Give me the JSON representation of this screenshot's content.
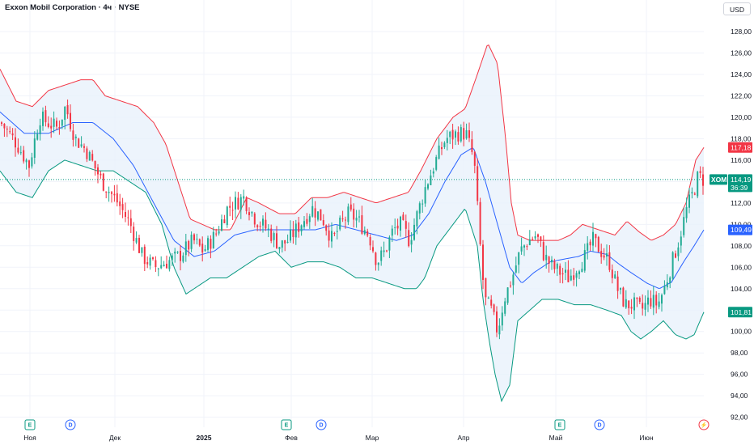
{
  "header": {
    "title": "Exxon Mobil Corporation · 4ч · NYSE",
    "currency": "USD"
  },
  "colors": {
    "up": "#22ab94",
    "down": "#f23645",
    "upper_band": "#f23645",
    "lower_band": "#089981",
    "basis": "#2962ff",
    "band_fill": "#e8f1fb",
    "grid": "#f0f3fa"
  },
  "price_tags": {
    "upper": {
      "value": "117,18",
      "color": "#f23645"
    },
    "symbol": {
      "label": "XOM",
      "value": "114,19",
      "countdown": "36:39",
      "color": "#089981"
    },
    "basis": {
      "value": "109,49",
      "color": "#2962ff"
    },
    "lower": {
      "value": "101,81",
      "color": "#089981"
    }
  },
  "events": [
    {
      "type": "earnings",
      "glyph": "E",
      "icon": "earnings-icon",
      "month": "Ноя"
    },
    {
      "type": "dividend",
      "glyph": "D",
      "icon": "dividend-icon",
      "month": "Ноя"
    },
    {
      "type": "earnings",
      "glyph": "E",
      "icon": "earnings-icon",
      "month": "Фев"
    },
    {
      "type": "dividend",
      "glyph": "D",
      "icon": "dividend-icon",
      "month": "Фев"
    },
    {
      "type": "earnings",
      "glyph": "E",
      "icon": "earnings-icon",
      "month": "Май"
    },
    {
      "type": "dividend",
      "glyph": "D",
      "icon": "dividend-icon",
      "month": "Май"
    },
    {
      "type": "split",
      "glyph": "⚡",
      "icon": "lightning-icon",
      "month": "Июн"
    }
  ],
  "chart_data": {
    "type": "candlestick",
    "indicator": "bollinger-bands",
    "ylim": [
      92,
      129
    ],
    "y_ticks": [
      "128,00",
      "126,00",
      "124,00",
      "122,00",
      "120,00",
      "118,00",
      "116,00",
      "114,00",
      "112,00",
      "110,00",
      "108,00",
      "106,00",
      "104,00",
      "102,00",
      "100,00",
      "98,00",
      "96,00",
      "94,00",
      "92,00"
    ],
    "y_tick_values": [
      128,
      126,
      124,
      122,
      120,
      118,
      116,
      114,
      112,
      110,
      108,
      106,
      104,
      102,
      100,
      98,
      96,
      94,
      92
    ],
    "x_labels": [
      {
        "text": "Ноя",
        "bold": false
      },
      {
        "text": "Дек",
        "bold": false
      },
      {
        "text": "2025",
        "bold": true
      },
      {
        "text": "Фев",
        "bold": false
      },
      {
        "text": "Мар",
        "bold": false
      },
      {
        "text": "Апр",
        "bold": false
      },
      {
        "text": "Май",
        "bold": false
      },
      {
        "text": "Июн",
        "bold": false
      }
    ],
    "last_price": 114.19,
    "anchors": {
      "close": [
        [
          0,
          119.5
        ],
        [
          20,
          117.5
        ],
        [
          35,
          115.5
        ],
        [
          48,
          120
        ],
        [
          58,
          119.5
        ],
        [
          70,
          119
        ],
        [
          80,
          121
        ],
        [
          92,
          118
        ],
        [
          105,
          117
        ],
        [
          125,
          114
        ],
        [
          145,
          112
        ],
        [
          160,
          110
        ],
        [
          175,
          107
        ],
        [
          190,
          106
        ],
        [
          205,
          106.5
        ],
        [
          220,
          107
        ],
        [
          238,
          108.5
        ],
        [
          250,
          107.5
        ],
        [
          265,
          109
        ],
        [
          280,
          111.5
        ],
        [
          300,
          112.5
        ],
        [
          315,
          110.5
        ],
        [
          330,
          109.5
        ],
        [
          345,
          108
        ],
        [
          355,
          108.5
        ],
        [
          370,
          110
        ],
        [
          385,
          111.5
        ],
        [
          398,
          110.5
        ],
        [
          410,
          108.5
        ],
        [
          420,
          110
        ],
        [
          430,
          111
        ],
        [
          440,
          110.5
        ],
        [
          455,
          109
        ],
        [
          465,
          106.5
        ],
        [
          475,
          107.5
        ],
        [
          485,
          109.5
        ],
        [
          495,
          110
        ],
        [
          505,
          108.5
        ],
        [
          515,
          111
        ],
        [
          525,
          113.5
        ],
        [
          538,
          116
        ],
        [
          550,
          118
        ],
        [
          565,
          118.5
        ],
        [
          575,
          118.5
        ],
        [
          585,
          116
        ],
        [
          592,
          108.5
        ],
        [
          598,
          103
        ],
        [
          606,
          102
        ],
        [
          614,
          100
        ],
        [
          622,
          103
        ],
        [
          632,
          105
        ],
        [
          642,
          107.5
        ],
        [
          652,
          108.5
        ],
        [
          662,
          109
        ],
        [
          672,
          107
        ],
        [
          682,
          106
        ],
        [
          692,
          105.5
        ],
        [
          702,
          105
        ],
        [
          712,
          106
        ],
        [
          722,
          107
        ],
        [
          732,
          108.5
        ],
        [
          742,
          107.5
        ],
        [
          752,
          106.5
        ],
        [
          762,
          104
        ],
        [
          772,
          102.5
        ],
        [
          782,
          102.5
        ],
        [
          792,
          102
        ],
        [
          802,
          103
        ],
        [
          812,
          102.5
        ],
        [
          820,
          104
        ],
        [
          828,
          106
        ],
        [
          838,
          108.5
        ],
        [
          848,
          111.5
        ],
        [
          856,
          113
        ],
        [
          862,
          114.5
        ],
        [
          868,
          114.19
        ]
      ],
      "basis": [
        [
          0,
          120.5
        ],
        [
          30,
          118.5
        ],
        [
          60,
          118.5
        ],
        [
          90,
          119.5
        ],
        [
          115,
          119.5
        ],
        [
          140,
          118
        ],
        [
          165,
          115.5
        ],
        [
          190,
          112
        ],
        [
          215,
          108.5
        ],
        [
          240,
          107
        ],
        [
          265,
          107.5
        ],
        [
          290,
          109
        ],
        [
          315,
          109.5
        ],
        [
          340,
          109.5
        ],
        [
          365,
          109.5
        ],
        [
          390,
          109.5
        ],
        [
          415,
          110
        ],
        [
          440,
          109.5
        ],
        [
          465,
          109
        ],
        [
          490,
          108.5
        ],
        [
          510,
          109
        ],
        [
          530,
          111
        ],
        [
          550,
          114
        ],
        [
          570,
          116.5
        ],
        [
          585,
          117.2
        ],
        [
          600,
          114
        ],
        [
          615,
          110
        ],
        [
          630,
          106
        ],
        [
          645,
          104.5
        ],
        [
          660,
          105.5
        ],
        [
          680,
          106.5
        ],
        [
          700,
          106.8
        ],
        [
          715,
          107
        ],
        [
          730,
          107.5
        ],
        [
          750,
          107.2
        ],
        [
          765,
          106.3
        ],
        [
          780,
          105.5
        ],
        [
          800,
          104.5
        ],
        [
          815,
          104
        ],
        [
          830,
          104.6
        ],
        [
          845,
          106.5
        ],
        [
          858,
          108
        ],
        [
          870,
          109.49
        ]
      ],
      "upper": [
        [
          0,
          124.5
        ],
        [
          20,
          121.5
        ],
        [
          40,
          121
        ],
        [
          60,
          122.5
        ],
        [
          80,
          123
        ],
        [
          100,
          123.5
        ],
        [
          115,
          123.5
        ],
        [
          130,
          122
        ],
        [
          150,
          121.5
        ],
        [
          170,
          121
        ],
        [
          190,
          119.5
        ],
        [
          205,
          117.5
        ],
        [
          220,
          114
        ],
        [
          235,
          110.5
        ],
        [
          250,
          110
        ],
        [
          265,
          109.5
        ],
        [
          285,
          109.5
        ],
        [
          305,
          112.5
        ],
        [
          320,
          112
        ],
        [
          345,
          111
        ],
        [
          365,
          111
        ],
        [
          385,
          112.5
        ],
        [
          405,
          112.5
        ],
        [
          425,
          113
        ],
        [
          445,
          112.5
        ],
        [
          465,
          112
        ],
        [
          485,
          112.5
        ],
        [
          505,
          113
        ],
        [
          520,
          115
        ],
        [
          540,
          118
        ],
        [
          560,
          120
        ],
        [
          575,
          120.8
        ],
        [
          590,
          124
        ],
        [
          603,
          126.9
        ],
        [
          615,
          125
        ],
        [
          625,
          118
        ],
        [
          632,
          112
        ],
        [
          640,
          109
        ],
        [
          655,
          108.5
        ],
        [
          670,
          108.5
        ],
        [
          690,
          108.5
        ],
        [
          705,
          109
        ],
        [
          720,
          110
        ],
        [
          740,
          109.5
        ],
        [
          760,
          109
        ],
        [
          775,
          110.3
        ],
        [
          790,
          109.3
        ],
        [
          805,
          108.5
        ],
        [
          820,
          109
        ],
        [
          835,
          110
        ],
        [
          848,
          112
        ],
        [
          860,
          116
        ],
        [
          870,
          117.18
        ]
      ],
      "lower": [
        [
          0,
          115
        ],
        [
          20,
          113
        ],
        [
          40,
          112.5
        ],
        [
          60,
          115
        ],
        [
          80,
          116
        ],
        [
          100,
          115.5
        ],
        [
          120,
          115
        ],
        [
          140,
          115
        ],
        [
          160,
          114
        ],
        [
          180,
          113
        ],
        [
          200,
          110
        ],
        [
          215,
          106
        ],
        [
          230,
          103.5
        ],
        [
          240,
          104
        ],
        [
          260,
          105
        ],
        [
          280,
          105
        ],
        [
          300,
          106
        ],
        [
          320,
          107
        ],
        [
          340,
          107.5
        ],
        [
          360,
          106
        ],
        [
          380,
          106.5
        ],
        [
          400,
          106.5
        ],
        [
          420,
          106
        ],
        [
          440,
          105
        ],
        [
          460,
          105
        ],
        [
          480,
          104.5
        ],
        [
          500,
          104
        ],
        [
          515,
          104
        ],
        [
          525,
          105
        ],
        [
          540,
          108
        ],
        [
          560,
          110
        ],
        [
          575,
          111.5
        ],
        [
          590,
          108
        ],
        [
          597,
          103
        ],
        [
          605,
          99
        ],
        [
          612,
          96
        ],
        [
          620,
          93.5
        ],
        [
          630,
          95
        ],
        [
          640,
          101
        ],
        [
          655,
          102
        ],
        [
          670,
          103
        ],
        [
          690,
          103
        ],
        [
          710,
          102.5
        ],
        [
          730,
          102.5
        ],
        [
          750,
          102
        ],
        [
          768,
          101.5
        ],
        [
          780,
          100
        ],
        [
          792,
          99.3
        ],
        [
          805,
          100
        ],
        [
          820,
          101
        ],
        [
          835,
          99.7
        ],
        [
          848,
          99.3
        ],
        [
          858,
          99.7
        ],
        [
          870,
          101.81
        ]
      ]
    },
    "candle_step": 3.4
  }
}
